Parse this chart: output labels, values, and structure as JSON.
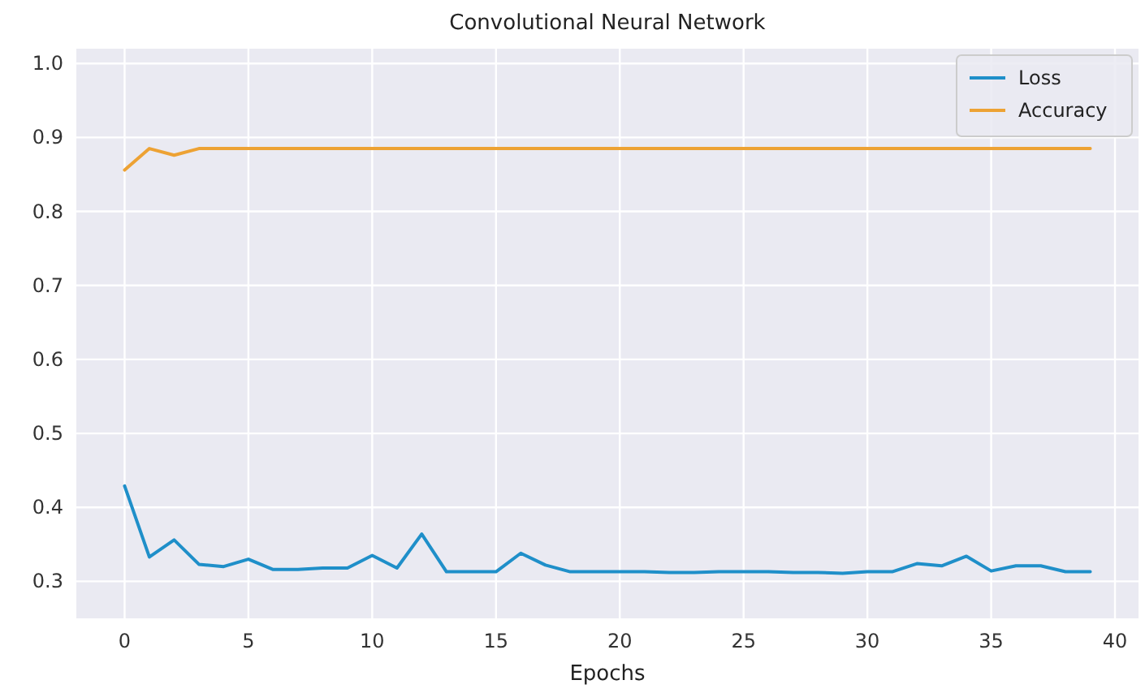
{
  "chart_data": {
    "type": "line",
    "title": "Convolutional Neural Network",
    "xlabel": "Epochs",
    "x": [
      0,
      1,
      2,
      3,
      4,
      5,
      6,
      7,
      8,
      9,
      10,
      11,
      12,
      13,
      14,
      15,
      16,
      17,
      18,
      19,
      20,
      21,
      22,
      23,
      24,
      25,
      26,
      27,
      28,
      29,
      30,
      31,
      32,
      33,
      34,
      35,
      36,
      37,
      38,
      39
    ],
    "series": [
      {
        "name": "Loss",
        "color": "#1f8fc9",
        "values": [
          0.429,
          0.333,
          0.356,
          0.323,
          0.32,
          0.33,
          0.316,
          0.316,
          0.318,
          0.318,
          0.335,
          0.318,
          0.364,
          0.313,
          0.313,
          0.313,
          0.338,
          0.322,
          0.313,
          0.313,
          0.313,
          0.313,
          0.312,
          0.312,
          0.313,
          0.313,
          0.313,
          0.312,
          0.312,
          0.311,
          0.313,
          0.313,
          0.324,
          0.321,
          0.334,
          0.314,
          0.321,
          0.321,
          0.313,
          0.313
        ]
      },
      {
        "name": "Accuracy",
        "color": "#eda234",
        "values": [
          0.856,
          0.885,
          0.876,
          0.885,
          0.885,
          0.885,
          0.885,
          0.885,
          0.885,
          0.885,
          0.885,
          0.885,
          0.885,
          0.885,
          0.885,
          0.885,
          0.885,
          0.885,
          0.885,
          0.885,
          0.885,
          0.885,
          0.885,
          0.885,
          0.885,
          0.885,
          0.885,
          0.885,
          0.885,
          0.885,
          0.885,
          0.885,
          0.885,
          0.885,
          0.885,
          0.885,
          0.885,
          0.885,
          0.885,
          0.885
        ]
      }
    ],
    "xlim": [
      -1.95,
      40.95
    ],
    "xticks": [
      0,
      5,
      10,
      15,
      20,
      25,
      30,
      35,
      40
    ],
    "ylim": [
      0.25,
      1.02
    ],
    "yticks": [
      0.3,
      0.4,
      0.5,
      0.6,
      0.7,
      0.8,
      0.9,
      {
        "value": 1,
        "label": "1.0"
      }
    ],
    "grid": true,
    "legend": "top right"
  }
}
